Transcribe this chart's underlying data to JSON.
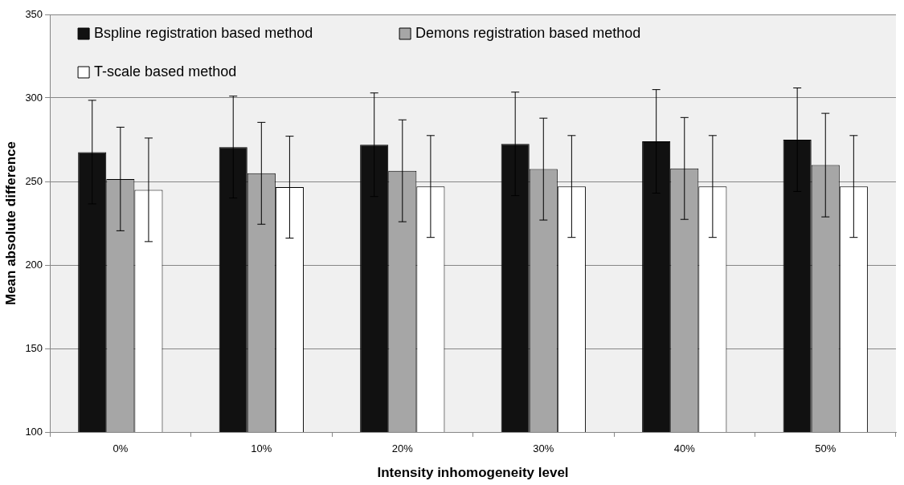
{
  "chart_data": {
    "type": "bar",
    "xlabel": "Intensity inhomogeneity level",
    "ylabel": "Mean absolute difference",
    "categories": [
      "0%",
      "10%",
      "20%",
      "30%",
      "40%",
      "50%"
    ],
    "series": [
      {
        "name": "Bspline registration based method",
        "color": "#111111",
        "values": [
          267.6,
          270.6,
          272,
          272.5,
          274,
          275
        ],
        "errors": [
          31,
          30.5,
          31,
          31,
          31,
          31
        ]
      },
      {
        "name": "Demons registration based method",
        "color": "#a6a6a6",
        "values": [
          251.5,
          254.9,
          256.4,
          257.4,
          257.8,
          259.8
        ],
        "errors": [
          31,
          30.5,
          30.5,
          30.5,
          30.5,
          31
        ]
      },
      {
        "name": "T-scale based method",
        "color": "#ffffff",
        "values": [
          245,
          246.6,
          247,
          247,
          247,
          247
        ],
        "errors": [
          31,
          30.5,
          30.5,
          30.5,
          30.5,
          30.5
        ]
      }
    ],
    "ylim": [
      100,
      350
    ],
    "yticks": [
      100,
      150,
      200,
      250,
      300,
      350
    ],
    "grid": "y",
    "legend": "top left"
  }
}
